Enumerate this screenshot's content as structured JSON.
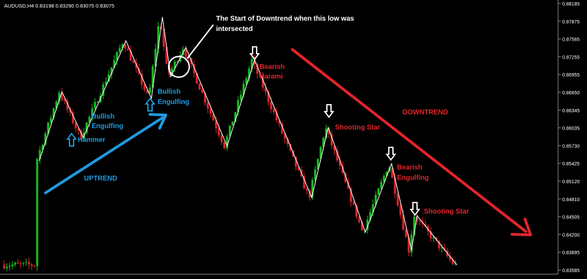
{
  "header": {
    "symbol_line": "AUDUSD,H4  0.83198 0.83290 0.83075 0.83075"
  },
  "colors": {
    "background": "#000000",
    "bull_candle": "#19c21f",
    "bear_candle": "#e3242b",
    "zigzag": "#ffffff",
    "uptrend": "#1e9be0",
    "downtrend": "#e3242b",
    "bullish_label": "#1e9be0",
    "bearish_label": "#e3242b",
    "axis_text": "#ffffff"
  },
  "chart_data": {
    "type": "candlestick",
    "y_axis_ticks": [
      "0.88185",
      "0.87875",
      "0.87565",
      "0.87255",
      "0.86955",
      "0.86650",
      "0.86345",
      "0.86035",
      "0.85730",
      "0.85425",
      "0.85120",
      "0.84810",
      "0.84505",
      "0.84200",
      "0.83895",
      "0.83585"
    ],
    "ylim": [
      0.8353,
      0.8824
    ],
    "zigzag_pivots": [
      {
        "x": 57,
        "price": 0.8546
      },
      {
        "x": 90,
        "price": 0.8668
      },
      {
        "x": 121,
        "price": 0.8587
      },
      {
        "x": 183,
        "price": 0.8758
      },
      {
        "x": 220,
        "price": 0.8656
      },
      {
        "x": 236,
        "price": 0.88
      },
      {
        "x": 248,
        "price": 0.8695
      },
      {
        "x": 270,
        "price": 0.8746
      },
      {
        "x": 330,
        "price": 0.8572
      },
      {
        "x": 370,
        "price": 0.8724
      },
      {
        "x": 453,
        "price": 0.8481
      },
      {
        "x": 477,
        "price": 0.8605
      },
      {
        "x": 531,
        "price": 0.842
      },
      {
        "x": 569,
        "price": 0.8541
      },
      {
        "x": 598,
        "price": 0.8388
      },
      {
        "x": 606,
        "price": 0.8449
      },
      {
        "x": 664,
        "price": 0.8362
      }
    ],
    "annotations": {
      "start_of_downtrend": "The Start of Downtrend when this low was intersected",
      "bearish_harami": "Bearish Harami",
      "shooting_star_1": "Shooting Star",
      "bearish_engulfing": "Bearish Engulfing",
      "shooting_star_2": "Shooting Star",
      "bullish_engulfing_1": "Bullish Engulfing",
      "bullish_engulfing_2": "Bullish Engulfing",
      "hammer": "Hammer",
      "uptrend": "UPTREND",
      "downtrend": "DOWNTREND"
    }
  }
}
